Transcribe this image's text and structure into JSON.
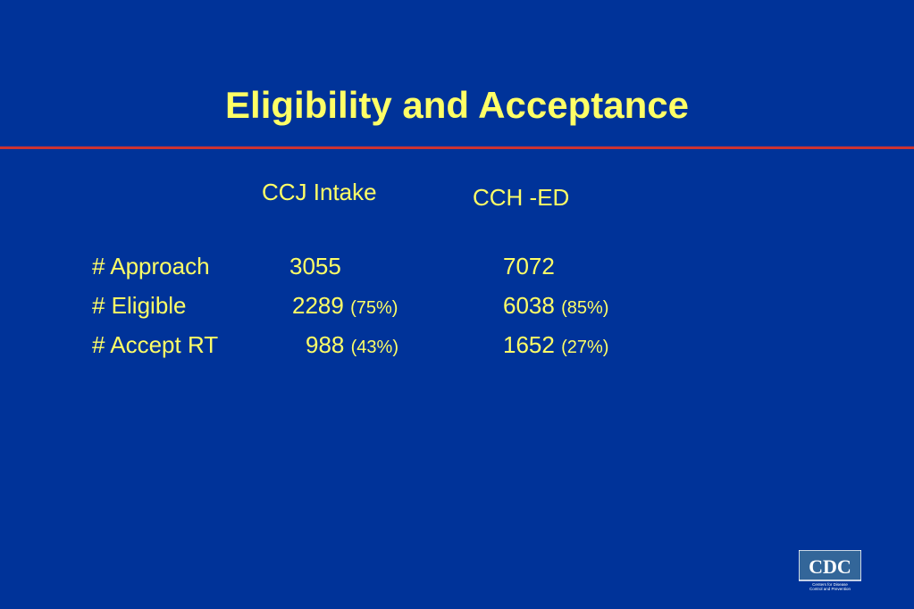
{
  "slide": {
    "title": "Eligibility and Acceptance",
    "columns": [
      "CCJ Intake",
      "CCH -ED"
    ],
    "rows": [
      {
        "label": "# Approach",
        "ccj_value": "3055",
        "ccj_pct": "",
        "cch_value": "7072",
        "cch_pct": ""
      },
      {
        "label": "# Eligible",
        "ccj_value": "2289",
        "ccj_pct": "(75%)",
        "cch_value": "6038",
        "cch_pct": "(85%)"
      },
      {
        "label": "# Accept RT",
        "ccj_value": "988",
        "ccj_pct": "(43%)",
        "cch_value": "1652",
        "cch_pct": "(27%)"
      }
    ]
  },
  "logo": {
    "text": "CDC",
    "subtext_line1": "Centers for Disease",
    "subtext_line2": "Control and Prevention",
    "color": "#336699"
  },
  "colors": {
    "background": "#003399",
    "text": "#ffff66",
    "rule": "#cc3333"
  }
}
